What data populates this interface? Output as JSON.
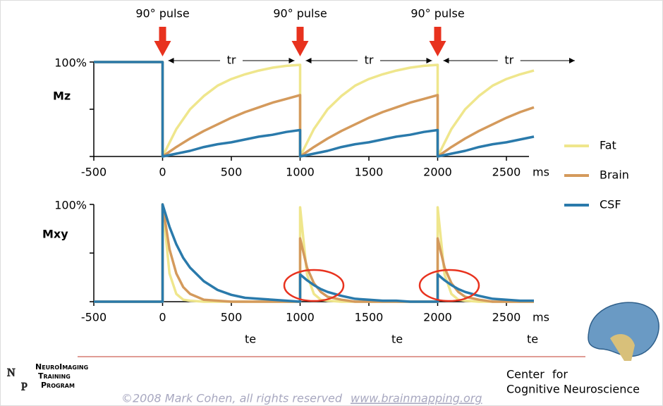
{
  "chart_data": [
    {
      "type": "line",
      "ylabel": "Mz",
      "x_unit": "ms",
      "pulse_label": "90° pulse",
      "pulse_x": [
        0,
        1000,
        2000
      ],
      "tr_label": "tr",
      "xlim": [
        -500,
        2700
      ],
      "ylim": [
        0,
        100
      ],
      "xticks": [
        -500,
        0,
        500,
        1000,
        1500,
        2000,
        2500
      ],
      "yticks": [
        {
          "value": 100,
          "label": "100%"
        }
      ],
      "minor_yticks": [
        0,
        50
      ],
      "x": [
        -500,
        0,
        0,
        100,
        200,
        300,
        400,
        500,
        600,
        700,
        800,
        900,
        1000,
        1000,
        1100,
        1200,
        1300,
        1400,
        1500,
        1600,
        1700,
        1800,
        1900,
        2000,
        2000,
        2100,
        2200,
        2300,
        2400,
        2500,
        2600,
        2700
      ],
      "series": [
        {
          "name": "Fat",
          "color": "#efe68c",
          "values": [
            100,
            100,
            0,
            29,
            50,
            64,
            75,
            82,
            87,
            91,
            94,
            96,
            97,
            0,
            29,
            50,
            64,
            75,
            82,
            87,
            91,
            94,
            96,
            97,
            0,
            29,
            50,
            64,
            75,
            82,
            87,
            91
          ]
        },
        {
          "name": "Brain",
          "color": "#d49a5c",
          "values": [
            100,
            100,
            0,
            10,
            19,
            27,
            34,
            41,
            47,
            52,
            57,
            61,
            65,
            0,
            10,
            19,
            27,
            34,
            41,
            47,
            52,
            57,
            61,
            65,
            0,
            10,
            19,
            27,
            34,
            41,
            47,
            52
          ]
        },
        {
          "name": "CSF",
          "color": "#2a7aab",
          "values": [
            100,
            100,
            0,
            3,
            6,
            10,
            13,
            15,
            18,
            21,
            23,
            26,
            28,
            0,
            3,
            6,
            10,
            13,
            15,
            18,
            21,
            23,
            26,
            28,
            0,
            3,
            6,
            10,
            13,
            15,
            18,
            21
          ]
        }
      ]
    },
    {
      "type": "line",
      "ylabel": "Mxy",
      "x_unit": "ms",
      "te_label": "te",
      "xlim": [
        -500,
        2700
      ],
      "ylim": [
        0,
        100
      ],
      "xticks": [
        -500,
        0,
        500,
        1000,
        1500,
        2000,
        2500
      ],
      "yticks": [
        {
          "value": 100,
          "label": "100%"
        }
      ],
      "minor_yticks": [
        0,
        50
      ],
      "x": [
        -500,
        0,
        0,
        50,
        100,
        150,
        200,
        300,
        400,
        500,
        600,
        700,
        800,
        900,
        1000,
        1000,
        1050,
        1100,
        1150,
        1200,
        1300,
        1400,
        1500,
        1600,
        1700,
        1800,
        1900,
        2000,
        2000,
        2050,
        2100,
        2150,
        2200,
        2300,
        2400,
        2500,
        2600,
        2700
      ],
      "series": [
        {
          "color": "#efe68c",
          "values": [
            0,
            0,
            100,
            29,
            8,
            2,
            1,
            0,
            0,
            0,
            0,
            0,
            0,
            0,
            0,
            97,
            28,
            8,
            2,
            1,
            0,
            0,
            0,
            0,
            0,
            0,
            0,
            0,
            97,
            28,
            8,
            2,
            1,
            0,
            0,
            0,
            0,
            0
          ]
        },
        {
          "color": "#d49a5c",
          "values": [
            0,
            0,
            100,
            54,
            29,
            15,
            8,
            2,
            1,
            0,
            0,
            0,
            0,
            0,
            0,
            65,
            35,
            19,
            10,
            5,
            2,
            0,
            0,
            0,
            0,
            0,
            0,
            0,
            65,
            35,
            19,
            10,
            5,
            2,
            0,
            0,
            0,
            0
          ]
        },
        {
          "color": "#2a7aab",
          "values": [
            0,
            0,
            100,
            77,
            59,
            45,
            35,
            21,
            12,
            7,
            4,
            3,
            2,
            1,
            0,
            28,
            22,
            17,
            13,
            10,
            6,
            3,
            2,
            1,
            1,
            0,
            0,
            0,
            28,
            22,
            17,
            13,
            10,
            6,
            3,
            2,
            1,
            1
          ]
        }
      ]
    }
  ],
  "footer": {
    "logo": [
      "NeuroImaging",
      "Training",
      "Program"
    ],
    "copyright": "©2008 Mark Cohen, all rights reserved",
    "url": "www.brainmapping.org",
    "center": "Center",
    "center_for": "for",
    "center_name": "Cognitive Neuroscience"
  }
}
